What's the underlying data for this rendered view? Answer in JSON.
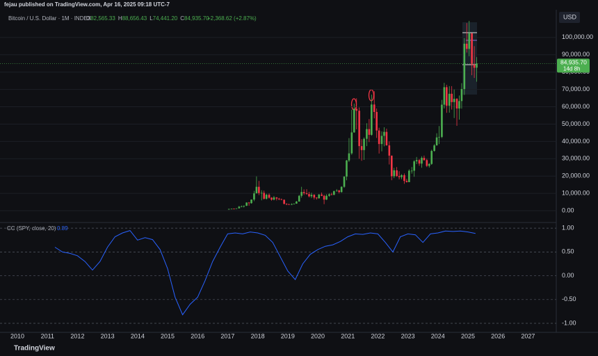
{
  "header": {
    "publisher": "fejau published on TradingView.com, Apr 16, 2025 09:18 UTC-7",
    "symbol": "Bitcoin / U.S. Dollar · 1M · INDEX",
    "ohlc": [
      {
        "key": "O",
        "value": "82,565.33"
      },
      {
        "key": "H",
        "value": "88,656.43"
      },
      {
        "key": "L",
        "value": "74,441.20"
      },
      {
        "key": "C",
        "value": "84,935.70"
      }
    ],
    "change": "+2,368.62 (+2.87%)",
    "currency": "USD",
    "price_tag": "84,935.70",
    "countdown": "14d 8h",
    "indicator": "CC (SPY, close, 20)",
    "indicator_value": "0.89",
    "footer": "TradingView"
  },
  "chart_data": [
    {
      "type": "candlestick",
      "up_color": "#4caf50",
      "down_color": "#f23645",
      "x": [
        2017.04,
        2017.13,
        2017.21,
        2017.29,
        2017.38,
        2017.46,
        2017.54,
        2017.63,
        2017.71,
        2017.79,
        2017.88,
        2017.96,
        2018.04,
        2018.13,
        2018.21,
        2018.29,
        2018.38,
        2018.46,
        2018.54,
        2018.63,
        2018.71,
        2018.79,
        2018.88,
        2018.96,
        2019.04,
        2019.13,
        2019.21,
        2019.29,
        2019.38,
        2019.46,
        2019.54,
        2019.63,
        2019.71,
        2019.79,
        2019.88,
        2019.96,
        2020.04,
        2020.13,
        2020.21,
        2020.29,
        2020.38,
        2020.46,
        2020.54,
        2020.63,
        2020.71,
        2020.79,
        2020.88,
        2020.96,
        2021.04,
        2021.13,
        2021.21,
        2021.29,
        2021.38,
        2021.46,
        2021.54,
        2021.63,
        2021.71,
        2021.79,
        2021.88,
        2021.96,
        2022.04,
        2022.13,
        2022.21,
        2022.29,
        2022.38,
        2022.46,
        2022.54,
        2022.63,
        2022.71,
        2022.79,
        2022.88,
        2022.96,
        2023.04,
        2023.13,
        2023.21,
        2023.29,
        2023.38,
        2023.46,
        2023.54,
        2023.63,
        2023.71,
        2023.79,
        2023.88,
        2023.96,
        2024.04,
        2024.13,
        2024.21,
        2024.29,
        2024.38,
        2024.46,
        2024.54,
        2024.63,
        2024.71,
        2024.79,
        2024.88,
        2024.96,
        2025.04,
        2025.13,
        2025.21,
        2025.29
      ],
      "open": [
        963,
        970,
        1190,
        1070,
        1350,
        2300,
        2480,
        2880,
        4700,
        4340,
        6450,
        10000,
        13800,
        10200,
        10300,
        6900,
        9200,
        7500,
        6400,
        7700,
        7000,
        6600,
        6300,
        4000,
        3700,
        3400,
        3800,
        4100,
        5300,
        8600,
        10800,
        10100,
        9600,
        8300,
        9200,
        7600,
        7200,
        9350,
        8600,
        6400,
        8600,
        9450,
        9140,
        11350,
        11650,
        10780,
        13800,
        19700,
        29000,
        33100,
        45200,
        58800,
        57700,
        37300,
        35000,
        41500,
        47100,
        43800,
        61300,
        57000,
        46300,
        38500,
        43200,
        45500,
        37700,
        31800,
        19900,
        23300,
        20000,
        19400,
        20500,
        17200,
        16500,
        23100,
        23100,
        28500,
        29200,
        27200,
        30500,
        29200,
        25900,
        27000,
        34500,
        37700,
        42300,
        42600,
        61200,
        71300,
        60600,
        67500,
        62700,
        64600,
        59000,
        63300,
        70200,
        96400,
        93400,
        102400,
        84300,
        82565.33
      ],
      "high": [
        1200,
        1200,
        1300,
        1400,
        2800,
        3000,
        2900,
        4800,
        5000,
        6500,
        11400,
        19800,
        17200,
        11800,
        11600,
        9800,
        10000,
        7800,
        8500,
        7800,
        7400,
        7000,
        6500,
        4300,
        4100,
        4200,
        4200,
        5600,
        9100,
        13800,
        12300,
        12400,
        10900,
        10400,
        9500,
        7700,
        9600,
        10500,
        9200,
        9500,
        10100,
        10400,
        11500,
        12500,
        12100,
        14100,
        19900,
        29300,
        41900,
        58300,
        61800,
        64900,
        59600,
        41300,
        42300,
        50500,
        52900,
        67000,
        69000,
        59000,
        47900,
        45800,
        48200,
        47400,
        40000,
        31800,
        24700,
        25200,
        22800,
        21100,
        21500,
        18400,
        23900,
        25200,
        29200,
        31000,
        29800,
        31400,
        31800,
        30000,
        27500,
        35200,
        38400,
        44700,
        48900,
        64000,
        73800,
        72700,
        71900,
        71900,
        70000,
        65000,
        66500,
        73600,
        99600,
        108300,
        109600,
        102500,
        95000,
        88656.43
      ],
      "low": [
        750,
        920,
        900,
        1050,
        1350,
        2100,
        1800,
        2700,
        2900,
        4100,
        5500,
        10800,
        9000,
        6000,
        6400,
        6400,
        7000,
        5800,
        6000,
        5900,
        6100,
        6100,
        3600,
        3200,
        3400,
        3400,
        3700,
        4000,
        5300,
        7500,
        9100,
        9300,
        7700,
        7300,
        6500,
        6400,
        6900,
        8400,
        3800,
        6200,
        8100,
        8900,
        9000,
        11000,
        10000,
        10400,
        13200,
        17600,
        28100,
        32300,
        45000,
        47000,
        30000,
        28800,
        29300,
        37300,
        39600,
        43300,
        53300,
        42000,
        33000,
        34300,
        37200,
        37600,
        26700,
        17600,
        18800,
        19600,
        18100,
        18200,
        15500,
        16300,
        16500,
        21400,
        19600,
        26900,
        25900,
        24800,
        28900,
        25200,
        24900,
        26500,
        34100,
        37600,
        38500,
        41900,
        59000,
        56500,
        56600,
        58400,
        53500,
        49000,
        52600,
        58900,
        66800,
        91300,
        89200,
        78200,
        76600,
        74441.2
      ],
      "close": [
        970,
        1190,
        1070,
        1350,
        2300,
        2480,
        2880,
        4700,
        4340,
        6450,
        10000,
        13800,
        10200,
        10300,
        6900,
        9200,
        7500,
        6400,
        7700,
        7000,
        6600,
        6300,
        4000,
        3700,
        3400,
        3800,
        4100,
        5300,
        8600,
        10800,
        10100,
        9600,
        8300,
        9200,
        7600,
        7200,
        9350,
        8600,
        6400,
        8600,
        9450,
        9140,
        11350,
        11650,
        10780,
        13800,
        19700,
        29000,
        33100,
        45200,
        58800,
        57700,
        37300,
        35000,
        41500,
        47100,
        43800,
        61300,
        57000,
        46300,
        38500,
        43200,
        45500,
        37700,
        31800,
        19900,
        23300,
        20000,
        19400,
        20500,
        17200,
        16500,
        23100,
        23100,
        28500,
        29200,
        27200,
        30500,
        29200,
        25900,
        27000,
        34500,
        37700,
        42300,
        42600,
        61200,
        71300,
        60600,
        67500,
        62700,
        64600,
        59000,
        63300,
        70200,
        96400,
        93400,
        102400,
        84300,
        82500,
        84935.7
      ],
      "xlim": [
        2009.42,
        2027.94
      ],
      "ylim": [
        -6000,
        116000
      ],
      "yticks": [
        {
          "value": 0,
          "label": "0.00"
        },
        {
          "value": 10000,
          "label": "10,000.00"
        },
        {
          "value": 20000,
          "label": "20,000.00"
        },
        {
          "value": 30000,
          "label": "30,000.00"
        },
        {
          "value": 40000,
          "label": "40,000.00"
        },
        {
          "value": 50000,
          "label": "50,000.00"
        },
        {
          "value": 60000,
          "label": "60,000.00"
        },
        {
          "value": 70000,
          "label": "70,000.00"
        },
        {
          "value": 80000,
          "label": "80,000.00"
        },
        {
          "value": 90000,
          "label": "90,000.00"
        },
        {
          "value": 100000,
          "label": "100,000.00"
        }
      ]
    },
    {
      "type": "line",
      "color": "#2962ff",
      "grid": true,
      "x": [
        2011.25,
        2011.5,
        2011.75,
        2012.0,
        2012.25,
        2012.5,
        2012.75,
        2013.0,
        2013.25,
        2013.5,
        2013.75,
        2014.0,
        2014.25,
        2014.5,
        2014.75,
        2015.0,
        2015.25,
        2015.5,
        2015.75,
        2016.0,
        2016.25,
        2016.5,
        2016.75,
        2017.0,
        2017.25,
        2017.5,
        2017.75,
        2018.0,
        2018.25,
        2018.5,
        2018.75,
        2019.0,
        2019.25,
        2019.5,
        2019.75,
        2020.0,
        2020.25,
        2020.5,
        2020.75,
        2021.0,
        2021.25,
        2021.5,
        2021.75,
        2022.0,
        2022.25,
        2022.5,
        2022.75,
        2023.0,
        2023.25,
        2023.5,
        2023.75,
        2024.0,
        2024.25,
        2024.5,
        2024.75,
        2025.0,
        2025.25
      ],
      "values": [
        0.6,
        0.5,
        0.47,
        0.42,
        0.3,
        0.12,
        0.3,
        0.6,
        0.82,
        0.9,
        0.95,
        0.75,
        0.8,
        0.76,
        0.55,
        0.15,
        -0.45,
        -0.82,
        -0.6,
        -0.45,
        -0.1,
        0.3,
        0.6,
        0.88,
        0.9,
        0.88,
        0.92,
        0.9,
        0.85,
        0.7,
        0.4,
        0.1,
        -0.08,
        0.25,
        0.45,
        0.55,
        0.62,
        0.65,
        0.72,
        0.82,
        0.88,
        0.87,
        0.9,
        0.88,
        0.7,
        0.5,
        0.82,
        0.88,
        0.86,
        0.7,
        0.88,
        0.9,
        0.94,
        0.93,
        0.94,
        0.92,
        0.89
      ],
      "xlim": [
        2009.42,
        2027.94
      ],
      "ylim": [
        -1.19,
        1.09
      ],
      "xticks": [
        2010,
        2011,
        2012,
        2013,
        2014,
        2015,
        2016,
        2017,
        2018,
        2019,
        2020,
        2021,
        2022,
        2023,
        2024,
        2025,
        2026,
        2027
      ],
      "yticks": [
        {
          "value": 1,
          "label": "1.00"
        },
        {
          "value": 0.5,
          "label": "0.50"
        },
        {
          "value": 0,
          "label": "0.00"
        },
        {
          "value": -0.5,
          "label": "-0.50"
        },
        {
          "value": -1,
          "label": "-1.00"
        }
      ]
    }
  ]
}
